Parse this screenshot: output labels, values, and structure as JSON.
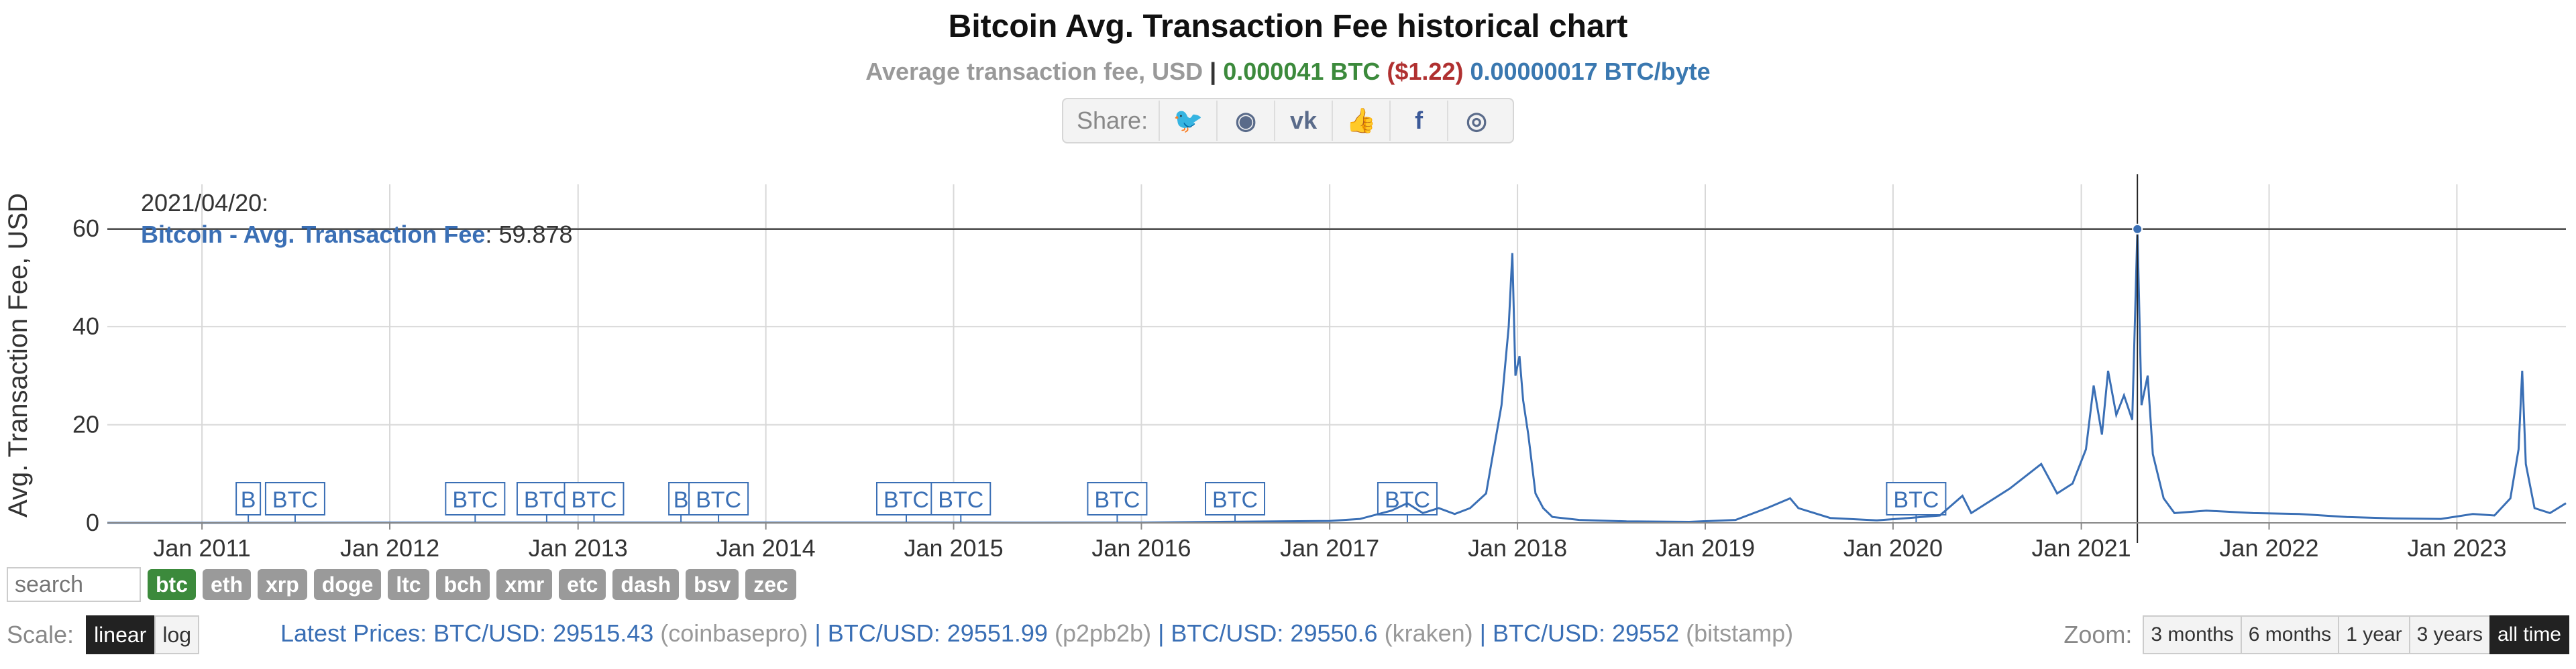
{
  "title": "Bitcoin Avg. Transaction Fee historical chart",
  "subtitle": {
    "label": "Average transaction fee, USD",
    "sep": "|",
    "btc": "0.000041 BTC",
    "usd": "($1.22)",
    "per_byte": "0.00000017 BTC/byte"
  },
  "share": {
    "label": "Share:",
    "icons": [
      {
        "name": "twitter-icon",
        "glyph": "🐦"
      },
      {
        "name": "reddit-icon",
        "glyph": "◉"
      },
      {
        "name": "vk-icon",
        "glyph": "vk"
      },
      {
        "name": "like-icon",
        "glyph": "👍"
      },
      {
        "name": "facebook-icon",
        "glyph": "f"
      },
      {
        "name": "weibo-icon",
        "glyph": "◎"
      }
    ]
  },
  "tooltip": {
    "date": "2021/04/20:",
    "series": "Bitcoin - Avg. Transaction Fee",
    "value": "59.878"
  },
  "chart_data": {
    "type": "line",
    "ylabel": "Avg. Transaction Fee, USD",
    "yticks": [
      0,
      20,
      40,
      60
    ],
    "ylim": [
      0,
      69
    ],
    "xlim": [
      "2010-07-01",
      "2023-08-01"
    ],
    "xticks": [
      "Jan 2011",
      "Jan 2012",
      "Jan 2013",
      "Jan 2014",
      "Jan 2015",
      "Jan 2016",
      "Jan 2017",
      "Jan 2018",
      "Jan 2019",
      "Jan 2020",
      "Jan 2021",
      "Jan 2022",
      "Jan 2023"
    ],
    "grid": true,
    "series": [
      {
        "name": "Bitcoin - Avg. Transaction Fee",
        "color": "#3a6fb5",
        "points": [
          [
            "2010-07-01",
            0.0
          ],
          [
            "2011-06-01",
            0.01
          ],
          [
            "2012-06-01",
            0.05
          ],
          [
            "2013-06-01",
            0.06
          ],
          [
            "2014-06-01",
            0.05
          ],
          [
            "2015-06-01",
            0.04
          ],
          [
            "2016-01-01",
            0.06
          ],
          [
            "2016-06-01",
            0.2
          ],
          [
            "2017-01-01",
            0.4
          ],
          [
            "2017-03-01",
            0.8
          ],
          [
            "2017-05-01",
            2.5
          ],
          [
            "2017-06-01",
            4.0
          ],
          [
            "2017-07-01",
            2.0
          ],
          [
            "2017-08-01",
            3.0
          ],
          [
            "2017-09-01",
            1.8
          ],
          [
            "2017-10-01",
            3.0
          ],
          [
            "2017-11-01",
            6.0
          ],
          [
            "2017-12-01",
            24.0
          ],
          [
            "2017-12-15",
            40.0
          ],
          [
            "2017-12-22",
            55.0
          ],
          [
            "2017-12-28",
            30.0
          ],
          [
            "2018-01-05",
            34.0
          ],
          [
            "2018-01-12",
            25.0
          ],
          [
            "2018-01-22",
            18.0
          ],
          [
            "2018-02-05",
            6.0
          ],
          [
            "2018-02-20",
            3.0
          ],
          [
            "2018-03-10",
            1.2
          ],
          [
            "2018-05-01",
            0.6
          ],
          [
            "2018-08-01",
            0.3
          ],
          [
            "2018-12-01",
            0.2
          ],
          [
            "2019-03-01",
            0.6
          ],
          [
            "2019-05-01",
            3.0
          ],
          [
            "2019-06-15",
            5.0
          ],
          [
            "2019-07-01",
            3.0
          ],
          [
            "2019-09-01",
            1.0
          ],
          [
            "2019-12-01",
            0.5
          ],
          [
            "2020-02-01",
            1.0
          ],
          [
            "2020-04-01",
            1.5
          ],
          [
            "2020-05-15",
            5.5
          ],
          [
            "2020-06-01",
            2.0
          ],
          [
            "2020-08-15",
            7.0
          ],
          [
            "2020-10-15",
            12.0
          ],
          [
            "2020-11-15",
            6.0
          ],
          [
            "2020-12-15",
            8.0
          ],
          [
            "2021-01-10",
            15.0
          ],
          [
            "2021-01-25",
            28.0
          ],
          [
            "2021-02-10",
            18.0
          ],
          [
            "2021-02-22",
            31.0
          ],
          [
            "2021-03-10",
            22.0
          ],
          [
            "2021-03-25",
            26.0
          ],
          [
            "2021-04-10",
            21.0
          ],
          [
            "2021-04-20",
            59.878
          ],
          [
            "2021-04-28",
            24.0
          ],
          [
            "2021-05-10",
            30.0
          ],
          [
            "2021-05-20",
            14.0
          ],
          [
            "2021-06-10",
            5.0
          ],
          [
            "2021-07-01",
            2.0
          ],
          [
            "2021-09-01",
            2.5
          ],
          [
            "2021-12-01",
            2.0
          ],
          [
            "2022-03-01",
            1.8
          ],
          [
            "2022-06-01",
            1.2
          ],
          [
            "2022-09-01",
            0.9
          ],
          [
            "2022-12-01",
            0.8
          ],
          [
            "2023-02-01",
            1.8
          ],
          [
            "2023-03-15",
            1.5
          ],
          [
            "2023-04-15",
            5.0
          ],
          [
            "2023-05-01",
            15.0
          ],
          [
            "2023-05-08",
            31.0
          ],
          [
            "2023-05-15",
            12.0
          ],
          [
            "2023-06-01",
            3.0
          ],
          [
            "2023-07-01",
            2.0
          ],
          [
            "2023-08-01",
            4.0
          ]
        ]
      }
    ],
    "crosshair": {
      "x": "2021-04-20",
      "y": 59.878
    },
    "flags": [
      {
        "label": "B",
        "x": "2011-04-01"
      },
      {
        "label": "BTC",
        "x": "2011-07-01"
      },
      {
        "label": "BTC",
        "x": "2012-06-15"
      },
      {
        "label": "BTC",
        "x": "2012-11-01"
      },
      {
        "label": "BTC",
        "x": "2013-02-01"
      },
      {
        "label": "B",
        "x": "2013-07-20"
      },
      {
        "label": "BTC",
        "x": "2013-10-01"
      },
      {
        "label": "BTC",
        "x": "2014-10-01"
      },
      {
        "label": "BTC",
        "x": "2015-01-15"
      },
      {
        "label": "BTC",
        "x": "2015-11-15"
      },
      {
        "label": "BTC",
        "x": "2016-07-01"
      },
      {
        "label": "BTC",
        "x": "2017-06-01"
      },
      {
        "label": "BTC",
        "x": "2020-02-15"
      }
    ]
  },
  "coins": [
    "btc",
    "eth",
    "xrp",
    "doge",
    "ltc",
    "bch",
    "xmr",
    "etc",
    "dash",
    "bsv",
    "zec"
  ],
  "active_coin": "btc",
  "search_placeholder": "search",
  "scale": {
    "label": "Scale:",
    "linear": "linear",
    "log": "log"
  },
  "prices": [
    {
      "pair": "Latest Prices: BTC/USD: 29515.43",
      "exchange": "(coinbasepro)"
    },
    {
      "pair": "BTC/USD: 29551.99",
      "exchange": "(p2pb2b)"
    },
    {
      "pair": "BTC/USD: 29550.6",
      "exchange": "(kraken)"
    },
    {
      "pair": "BTC/USD: 29552",
      "exchange": "(bitstamp)"
    }
  ],
  "price_sep": " | ",
  "zoom": {
    "label": "Zoom:",
    "buttons": [
      "3 months",
      "6 months",
      "1 year",
      "3 years",
      "all time"
    ],
    "active": "all time"
  }
}
